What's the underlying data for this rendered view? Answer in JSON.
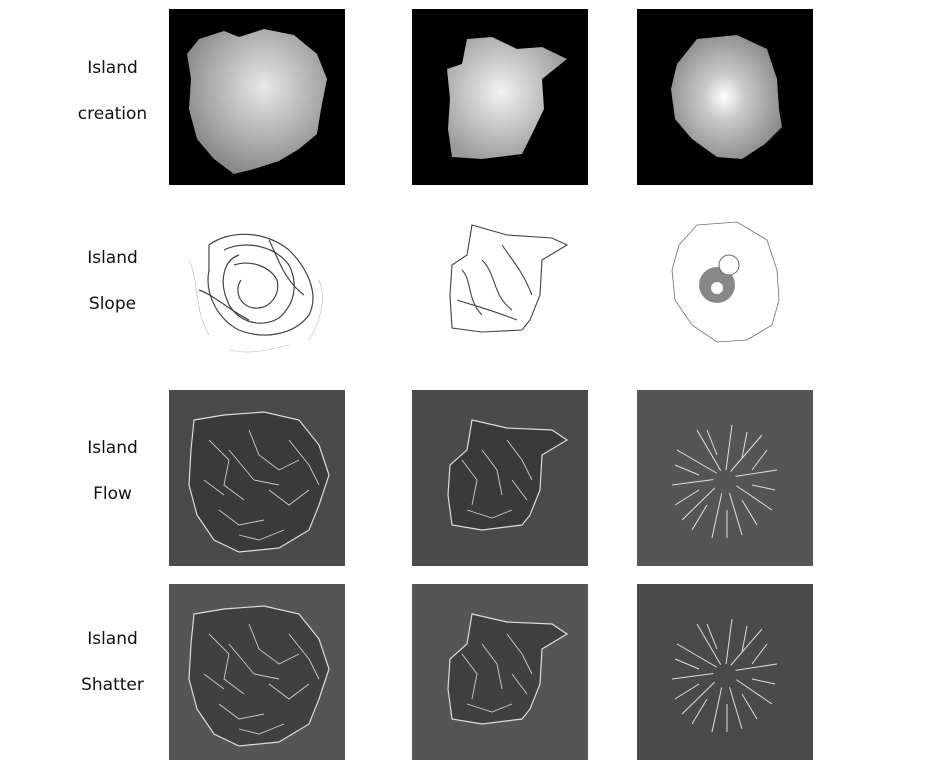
{
  "rows": [
    {
      "line1": "Island",
      "line2": "creation"
    },
    {
      "line1": "Island",
      "line2": "Slope"
    },
    {
      "line1": "Island",
      "line2": "Flow"
    },
    {
      "line1": "Island",
      "line2": "Shatter"
    }
  ],
  "colors": {
    "creation_bg": "#000000",
    "slope_bg": "#ffffff",
    "flow_bg": "#4a4a4a",
    "shatter_bg": "#555555",
    "island_fill": "#bdbdbd"
  }
}
